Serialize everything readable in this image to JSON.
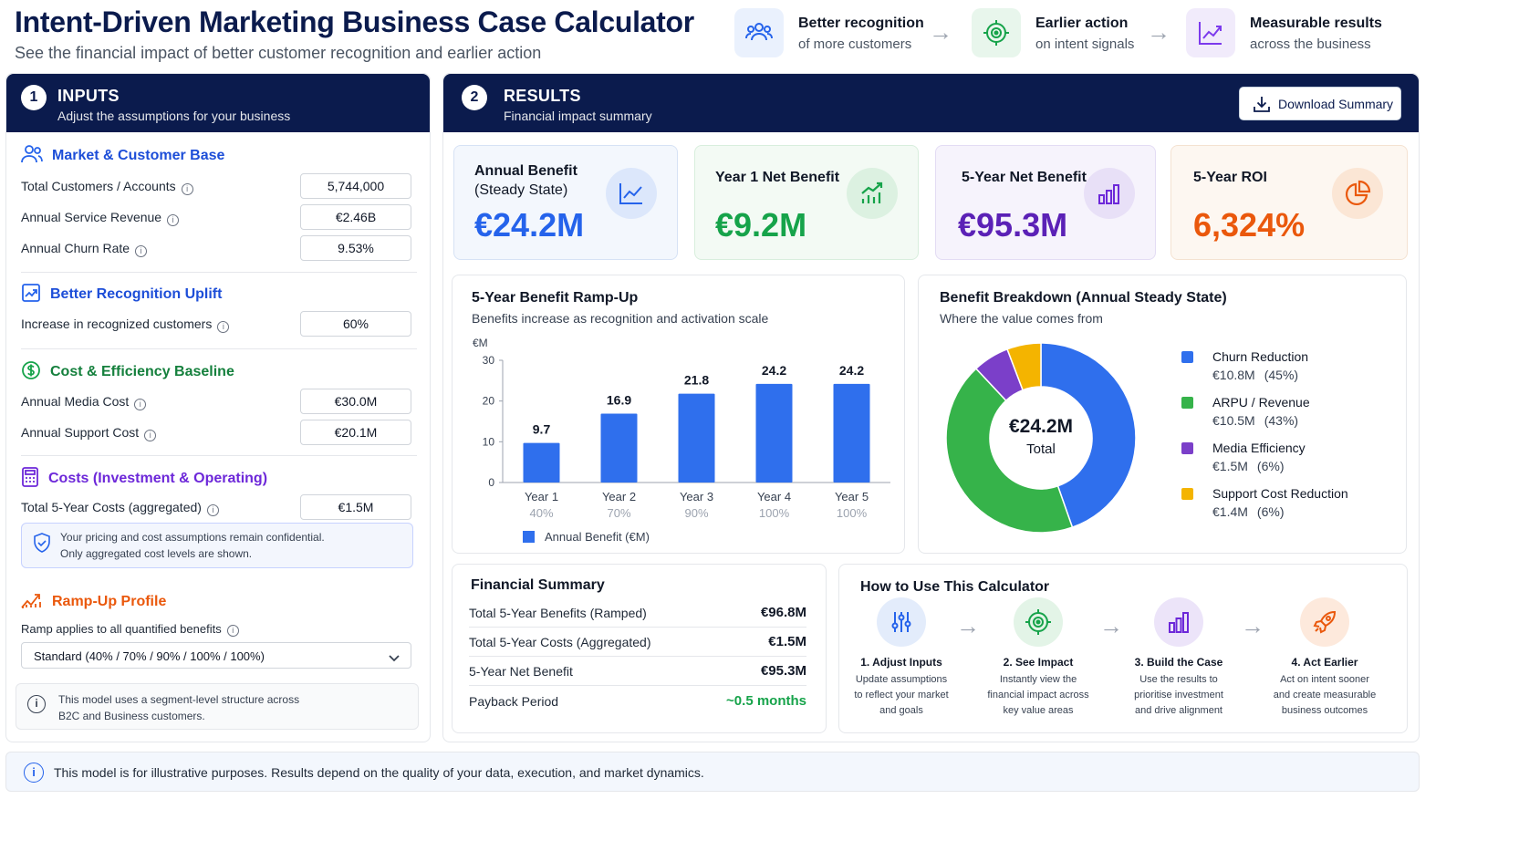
{
  "header": {
    "title": "Intent-Driven Marketing Business Case Calculator",
    "subtitle": "See the financial impact of better customer recognition and earlier action",
    "steps": [
      {
        "line1": "Better recognition",
        "line2": "of more customers",
        "icon": "users-icon",
        "color": "#2563eb"
      },
      {
        "line1": "Earlier action",
        "line2": "on intent signals",
        "icon": "target-icon",
        "color": "#16a34a"
      },
      {
        "line1": "Measurable results",
        "line2": "across the business",
        "icon": "chart-growth-icon",
        "color": "#7c3aed"
      }
    ]
  },
  "inputs": {
    "number": "1",
    "title": "INPUTS",
    "subtitle": "Adjust the assumptions for your business",
    "market": {
      "title": "Market & Customer Base",
      "rows": [
        {
          "label": "Total Customers / Accounts",
          "value": "5,744,000"
        },
        {
          "label": "Annual Service Revenue",
          "value": "€2.46B"
        },
        {
          "label": "Annual Churn Rate",
          "value": "9.53%"
        }
      ]
    },
    "recognition": {
      "title": "Better Recognition Uplift",
      "rows": [
        {
          "label": "Increase in recognized customers",
          "value": "60%"
        }
      ]
    },
    "baseline": {
      "title": "Cost & Efficiency Baseline",
      "rows": [
        {
          "label": "Annual Media Cost",
          "value": "€30.0M"
        },
        {
          "label": "Annual Support Cost",
          "value": "€20.1M"
        }
      ]
    },
    "costs": {
      "title": "Costs (Investment & Operating)",
      "rows": [
        {
          "label": "Total 5-Year Costs (aggregated)",
          "value": "€1.5M"
        }
      ],
      "note_line1": "Your pricing and cost assumptions remain confidential.",
      "note_line2": "Only aggregated cost levels are shown."
    },
    "ramp": {
      "title": "Ramp-Up Profile",
      "label": "Ramp applies to all quantified benefits",
      "selected": "Standard (40% / 70% / 90% / 100% / 100%)"
    },
    "model_note_line1": "This model uses a segment-level structure across",
    "model_note_line2": "B2C and Business customers."
  },
  "results": {
    "number": "2",
    "title": "RESULTS",
    "subtitle": "Financial impact summary",
    "download_label": "Download Summary",
    "kpis": [
      {
        "label1": "Annual Benefit",
        "label2": "(Steady State)",
        "value": "€24.2M",
        "color": "#2563eb"
      },
      {
        "label1": "Year 1 Net Benefit",
        "label2": "",
        "value": "€9.2M",
        "color": "#16a34a"
      },
      {
        "label1": "5-Year Net Benefit",
        "label2": "",
        "value": "€95.3M",
        "color": "#5b21b6"
      },
      {
        "label1": "5-Year ROI",
        "label2": "",
        "value": "6,324%",
        "color": "#ea580c"
      }
    ],
    "rampup": {
      "title": "5-Year Benefit Ramp-Up",
      "subtitle": "Benefits increase as recognition and activation scale"
    },
    "breakdown": {
      "title": "Benefit Breakdown (Annual Steady State)",
      "subtitle": "Where the value comes from",
      "center_value": "€24.2M",
      "center_label": "Total"
    },
    "financial_summary": {
      "title": "Financial Summary",
      "rows": [
        {
          "label": "Total 5-Year Benefits (Ramped)",
          "value": "€96.8M"
        },
        {
          "label": "Total 5-Year Costs (Aggregated)",
          "value": "€1.5M"
        },
        {
          "label": "5-Year Net Benefit",
          "value": "€95.3M"
        },
        {
          "label": "Payback Period",
          "value": "~0.5 months"
        }
      ]
    },
    "how_to": {
      "title": "How to Use This Calculator",
      "steps": [
        {
          "title": "1. Adjust Inputs",
          "desc": [
            "Update assumptions",
            "to reflect your market",
            "and goals"
          ],
          "icon": "sliders-icon"
        },
        {
          "title": "2. See Impact",
          "desc": [
            "Instantly view the",
            "financial impact across",
            "key value areas"
          ],
          "icon": "target-icon"
        },
        {
          "title": "3. Build the Case",
          "desc": [
            "Use the results to",
            "prioritise investment",
            "and drive alignment"
          ],
          "icon": "bar-chart-icon"
        },
        {
          "title": "4. Act Earlier",
          "desc": [
            "Act on intent sooner",
            "and create measurable",
            "business outcomes"
          ],
          "icon": "rocket-icon"
        }
      ]
    }
  },
  "footer": {
    "note": "This model is for illustrative purposes. Results depend on the quality of your data, execution, and market dynamics."
  },
  "chart_data": [
    {
      "type": "bar",
      "title": "5-Year Benefit Ramp-Up",
      "subtitle": "Benefits increase as recognition and activation scale",
      "ylabel": "€M",
      "categories": [
        "Year 1",
        "Year 2",
        "Year 3",
        "Year 4",
        "Year 5"
      ],
      "sublabels": [
        "40%",
        "70%",
        "90%",
        "100%",
        "100%"
      ],
      "series": [
        {
          "name": "Annual Benefit (€M)",
          "values": [
            9.7,
            16.9,
            21.8,
            24.2,
            24.2
          ],
          "color": "#2f6fed"
        }
      ],
      "ylim": [
        0,
        30
      ],
      "yticks": [
        0,
        10,
        20,
        30
      ],
      "grid": false,
      "legend": "bottom-left"
    },
    {
      "type": "pie",
      "title": "Benefit Breakdown (Annual Steady State)",
      "subtitle": "Where the value comes from",
      "donut": true,
      "slices": [
        {
          "label": "Churn Reduction",
          "value": 10.8,
          "display": "€10.8M",
          "percent": "(45%)",
          "color": "#2f6fed"
        },
        {
          "label": "ARPU / Revenue",
          "value": 10.5,
          "display": "€10.5M",
          "percent": "(43%)",
          "color": "#36b34a"
        },
        {
          "label": "Media Efficiency",
          "value": 1.5,
          "display": "€1.5M",
          "percent": "(6%)",
          "color": "#7b3fc9"
        },
        {
          "label": "Support Cost Reduction",
          "value": 1.4,
          "display": "€1.4M",
          "percent": "(6%)",
          "color": "#f4b400"
        }
      ],
      "legend": "right"
    }
  ]
}
